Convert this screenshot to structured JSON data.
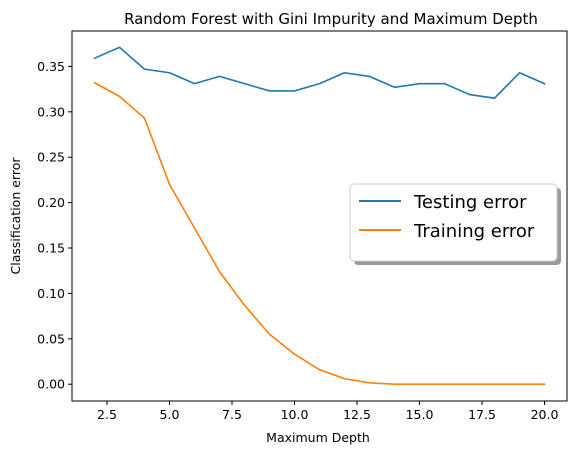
{
  "chart_data": {
    "type": "line",
    "title": "Random Forest with Gini Impurity and Maximum Depth",
    "xlabel": "Maximum Depth",
    "ylabel": "Classification error",
    "xlim": [
      1.1,
      20.9
    ],
    "ylim": [
      -0.0185,
      0.389
    ],
    "xticks": [
      2.5,
      5.0,
      7.5,
      10.0,
      12.5,
      15.0,
      17.5,
      20.0
    ],
    "xtick_labels": [
      "2.5",
      "5.0",
      "7.5",
      "10.0",
      "12.5",
      "15.0",
      "17.5",
      "20.0"
    ],
    "yticks": [
      0.0,
      0.05,
      0.1,
      0.15,
      0.2,
      0.25,
      0.3,
      0.35
    ],
    "ytick_labels": [
      "0.00",
      "0.05",
      "0.10",
      "0.15",
      "0.20",
      "0.25",
      "0.30",
      "0.35"
    ],
    "grid": false,
    "legend_position": "center-right",
    "x": [
      2,
      3,
      4,
      5,
      6,
      7,
      8,
      9,
      10,
      11,
      12,
      13,
      14,
      15,
      16,
      17,
      18,
      19,
      20
    ],
    "series": [
      {
        "name": "Testing error",
        "color": "#1f77b4",
        "values": [
          0.359,
          0.371,
          0.347,
          0.343,
          0.331,
          0.339,
          0.331,
          0.323,
          0.323,
          0.331,
          0.343,
          0.339,
          0.327,
          0.331,
          0.331,
          0.319,
          0.315,
          0.343,
          0.331
        ]
      },
      {
        "name": "Training error",
        "color": "#ff7f0e",
        "values": [
          0.332,
          0.317,
          0.293,
          0.22,
          0.172,
          0.124,
          0.087,
          0.055,
          0.033,
          0.016,
          0.006,
          0.0015,
          0.0,
          0.0,
          0.0,
          0.0,
          0.0,
          0.0,
          0.0
        ]
      }
    ]
  }
}
